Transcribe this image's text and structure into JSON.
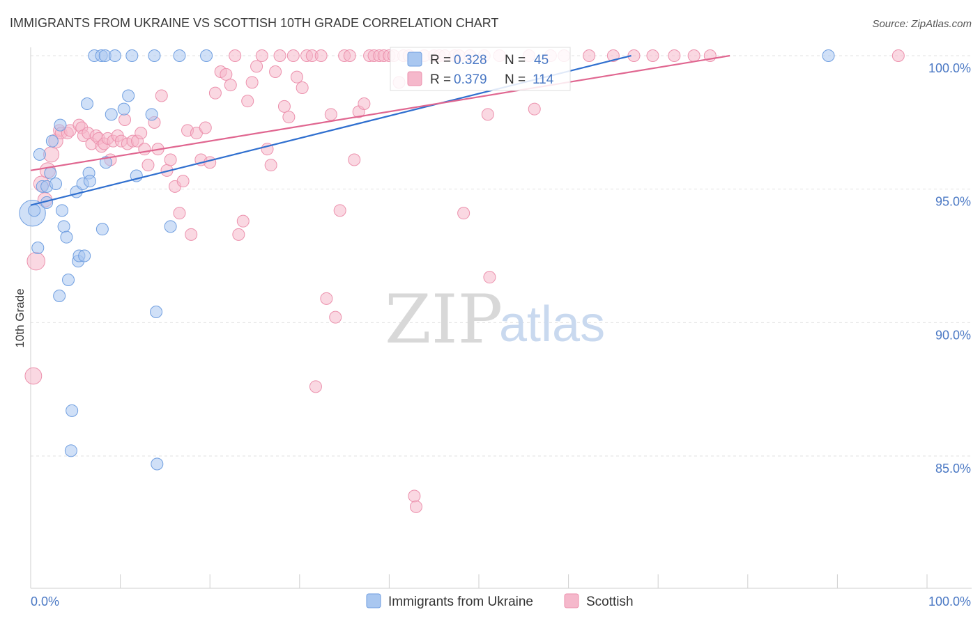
{
  "title": "IMMIGRANTS FROM UKRAINE VS SCOTTISH 10TH GRADE CORRELATION CHART",
  "source": "Source: ZipAtlas.com",
  "watermark": {
    "zip": "ZIP",
    "atlas": "atlas"
  },
  "colors": {
    "blue_fill": "#a9c7f0",
    "blue_stroke": "#6f9ee0",
    "blue_line": "#2f6fcf",
    "pink_fill": "#f5b8cb",
    "pink_stroke": "#ec91ad",
    "pink_line": "#e06690",
    "grid": "#e2e2e2",
    "axis_tick": "#4a78c4"
  },
  "legend_box": {
    "rows": [
      {
        "r_label": "R = ",
        "r_value": "0.328",
        "n_label": "N = ",
        "n_value": "45",
        "series": "blue"
      },
      {
        "r_label": "R = ",
        "r_value": "0.379",
        "n_label": "N = ",
        "n_value": "114",
        "series": "pink"
      }
    ]
  },
  "chart_data": {
    "type": "scatter",
    "title": "IMMIGRANTS FROM UKRAINE VS SCOTTISH 10TH GRADE CORRELATION CHART",
    "xlabel": "",
    "ylabel": "10th Grade",
    "xlim": [
      0,
      100
    ],
    "ylim": [
      80.5,
      100.8
    ],
    "x_tick_labels": [
      {
        "value": 0,
        "label": "0.0%"
      },
      {
        "value": 100,
        "label": "100.0%"
      }
    ],
    "y_tick_labels": [
      {
        "value": 100,
        "label": "100.0%"
      },
      {
        "value": 95,
        "label": "95.0%"
      },
      {
        "value": 90,
        "label": "90.0%"
      },
      {
        "value": 85,
        "label": "85.0%"
      }
    ],
    "x_minor_ticks": [
      10,
      20,
      30,
      40,
      50,
      60,
      70,
      80,
      90,
      100
    ],
    "grid": true,
    "series": [
      {
        "name": "Immigrants from Ukraine",
        "color": "blue",
        "r": 0.328,
        "n": 45,
        "trend": {
          "x0": 0,
          "y0": 94.4,
          "x1": 67,
          "y1": 100
        },
        "points": [
          [
            0.2,
            94.1,
            2.2
          ],
          [
            0.8,
            92.8,
            1
          ],
          [
            1,
            96.3,
            1
          ],
          [
            1.3,
            95.1,
            1
          ],
          [
            1.8,
            95.1,
            1
          ],
          [
            1.8,
            94.5,
            1
          ],
          [
            2.2,
            95.6,
            1
          ],
          [
            2.4,
            96.8,
            1
          ],
          [
            2.8,
            95.2,
            1
          ],
          [
            3.2,
            91,
            1
          ],
          [
            3.3,
            97.4,
            1
          ],
          [
            3.5,
            94.2,
            1
          ],
          [
            3.7,
            93.6,
            1
          ],
          [
            4,
            93.2,
            1
          ],
          [
            4.2,
            91.6,
            1
          ],
          [
            4.6,
            86.7,
            1
          ],
          [
            4.5,
            85.2,
            1
          ],
          [
            5.1,
            94.9,
            1
          ],
          [
            5.3,
            92.3,
            1
          ],
          [
            5.4,
            92.5,
            1
          ],
          [
            5.8,
            95.2,
            1
          ],
          [
            6,
            92.5,
            1
          ],
          [
            6.3,
            98.2,
            1
          ],
          [
            6.5,
            95.6,
            1
          ],
          [
            6.6,
            95.3,
            1
          ],
          [
            7.1,
            100,
            1
          ],
          [
            7.9,
            100,
            1
          ],
          [
            8,
            93.5,
            1
          ],
          [
            8.3,
            100,
            1
          ],
          [
            8.4,
            96,
            1
          ],
          [
            9,
            97.8,
            1
          ],
          [
            9.4,
            100,
            1
          ],
          [
            10.4,
            98,
            1
          ],
          [
            10.9,
            98.5,
            1
          ],
          [
            11.3,
            100,
            1
          ],
          [
            11.8,
            95.5,
            1
          ],
          [
            13.5,
            97.8,
            1
          ],
          [
            13.8,
            100,
            1
          ],
          [
            14,
            90.4,
            1
          ],
          [
            14.1,
            84.7,
            1
          ],
          [
            15.6,
            93.6,
            1
          ],
          [
            16.6,
            100,
            1
          ],
          [
            19.6,
            100,
            1
          ],
          [
            89,
            100,
            1
          ],
          [
            0.4,
            94.2,
            1
          ]
        ]
      },
      {
        "name": "Scottish",
        "color": "pink",
        "r": 0.379,
        "n": 114,
        "trend": {
          "x0": 0,
          "y0": 95.7,
          "x1": 78,
          "y1": 100
        },
        "points": [
          [
            0.6,
            92.3,
            1.5
          ],
          [
            0.3,
            88,
            1.4
          ],
          [
            1.2,
            95.2,
            1.3
          ],
          [
            1.9,
            95.7,
            1.3
          ],
          [
            2.3,
            96.3,
            1.3
          ],
          [
            2.8,
            96.8,
            1.2
          ],
          [
            1.6,
            94.6,
            1.2
          ],
          [
            3.2,
            97.2,
            1
          ],
          [
            3.4,
            97.1,
            1
          ],
          [
            4.1,
            97.1,
            1
          ],
          [
            4.4,
            97.2,
            1
          ],
          [
            5.4,
            97.4,
            1
          ],
          [
            5.7,
            97.3,
            1
          ],
          [
            5.9,
            97,
            1
          ],
          [
            6.4,
            97.1,
            1
          ],
          [
            6.8,
            96.7,
            1
          ],
          [
            7.3,
            97,
            1
          ],
          [
            7.6,
            96.9,
            1
          ],
          [
            7.9,
            96.6,
            1
          ],
          [
            8.2,
            96.7,
            1
          ],
          [
            8.6,
            96.9,
            1
          ],
          [
            8.9,
            96.1,
            1
          ],
          [
            9.2,
            96.8,
            1
          ],
          [
            9.7,
            97,
            1
          ],
          [
            10.1,
            96.8,
            1
          ],
          [
            10.5,
            97.6,
            1
          ],
          [
            10.8,
            96.7,
            1
          ],
          [
            11.4,
            96.8,
            1
          ],
          [
            11.9,
            96.8,
            1
          ],
          [
            12.3,
            97.1,
            1
          ],
          [
            12.7,
            96.5,
            1
          ],
          [
            13.1,
            95.9,
            1
          ],
          [
            13.8,
            97.5,
            1
          ],
          [
            14.2,
            96.5,
            1
          ],
          [
            14.6,
            98.5,
            1
          ],
          [
            15.2,
            95.7,
            1
          ],
          [
            15.6,
            96.1,
            1
          ],
          [
            16.1,
            95.1,
            1
          ],
          [
            16.6,
            94.1,
            1
          ],
          [
            17,
            95.3,
            1
          ],
          [
            17.5,
            97.2,
            1
          ],
          [
            17.9,
            93.3,
            1
          ],
          [
            18.5,
            97.1,
            1
          ],
          [
            19,
            96.1,
            1
          ],
          [
            19.5,
            97.3,
            1
          ],
          [
            20,
            96,
            1
          ],
          [
            20.6,
            98.6,
            1
          ],
          [
            21.2,
            99.4,
            1
          ],
          [
            21.8,
            99.3,
            1
          ],
          [
            22.3,
            98.9,
            1
          ],
          [
            22.8,
            100,
            1
          ],
          [
            23.2,
            93.3,
            1
          ],
          [
            23.7,
            93.8,
            1
          ],
          [
            24.2,
            98.3,
            1
          ],
          [
            24.7,
            99,
            1
          ],
          [
            25.2,
            99.6,
            1
          ],
          [
            25.8,
            100,
            1
          ],
          [
            26.4,
            96.5,
            1
          ],
          [
            26.8,
            95.9,
            1
          ],
          [
            27.3,
            99.4,
            1
          ],
          [
            27.8,
            100,
            1
          ],
          [
            28.3,
            98.1,
            1
          ],
          [
            28.8,
            97.7,
            1
          ],
          [
            29.3,
            100,
            1
          ],
          [
            29.7,
            99.2,
            1
          ],
          [
            30.3,
            98.8,
            1
          ],
          [
            30.8,
            100,
            1
          ],
          [
            31.4,
            100,
            1
          ],
          [
            31.8,
            87.6,
            1
          ],
          [
            32.4,
            100,
            1
          ],
          [
            33,
            90.9,
            1
          ],
          [
            33.5,
            97.8,
            1
          ],
          [
            34,
            90.2,
            1
          ],
          [
            34.5,
            94.2,
            1
          ],
          [
            35,
            100,
            1
          ],
          [
            35.6,
            100,
            1
          ],
          [
            36.1,
            96.1,
            1
          ],
          [
            36.6,
            97.9,
            1
          ],
          [
            37.2,
            98.2,
            1
          ],
          [
            37.8,
            100,
            1
          ],
          [
            38.3,
            100,
            1
          ],
          [
            38.9,
            100,
            1
          ],
          [
            39.4,
            100,
            1
          ],
          [
            40,
            100,
            1
          ],
          [
            40.5,
            100,
            1
          ],
          [
            41.1,
            99,
            1
          ],
          [
            41.6,
            100,
            1
          ],
          [
            42.2,
            100,
            1
          ],
          [
            42.8,
            83.5,
            1
          ],
          [
            43,
            83.1,
            1
          ],
          [
            43.9,
            100,
            1
          ],
          [
            45,
            100,
            1
          ],
          [
            45.6,
            100,
            1
          ],
          [
            46.2,
            100,
            1
          ],
          [
            47.3,
            100,
            1
          ],
          [
            47.8,
            100,
            1
          ],
          [
            48.3,
            94.1,
            1
          ],
          [
            49,
            100,
            1
          ],
          [
            50.6,
            100,
            1
          ],
          [
            51,
            97.8,
            1
          ],
          [
            51.2,
            91.7,
            1
          ],
          [
            52.3,
            100,
            1
          ],
          [
            55.6,
            100,
            1
          ],
          [
            56.2,
            98,
            1
          ],
          [
            58,
            100,
            1
          ],
          [
            59.5,
            100,
            1
          ],
          [
            62.3,
            100,
            1
          ],
          [
            65,
            100,
            1
          ],
          [
            67.3,
            100,
            1
          ],
          [
            69.4,
            100,
            1
          ],
          [
            71.8,
            100,
            1
          ],
          [
            74,
            100,
            1
          ],
          [
            75.8,
            100,
            1
          ],
          [
            96.8,
            100,
            1
          ]
        ]
      }
    ],
    "legend": [
      {
        "label": "Immigrants from Ukraine",
        "color": "blue"
      },
      {
        "label": "Scottish",
        "color": "pink"
      }
    ]
  }
}
